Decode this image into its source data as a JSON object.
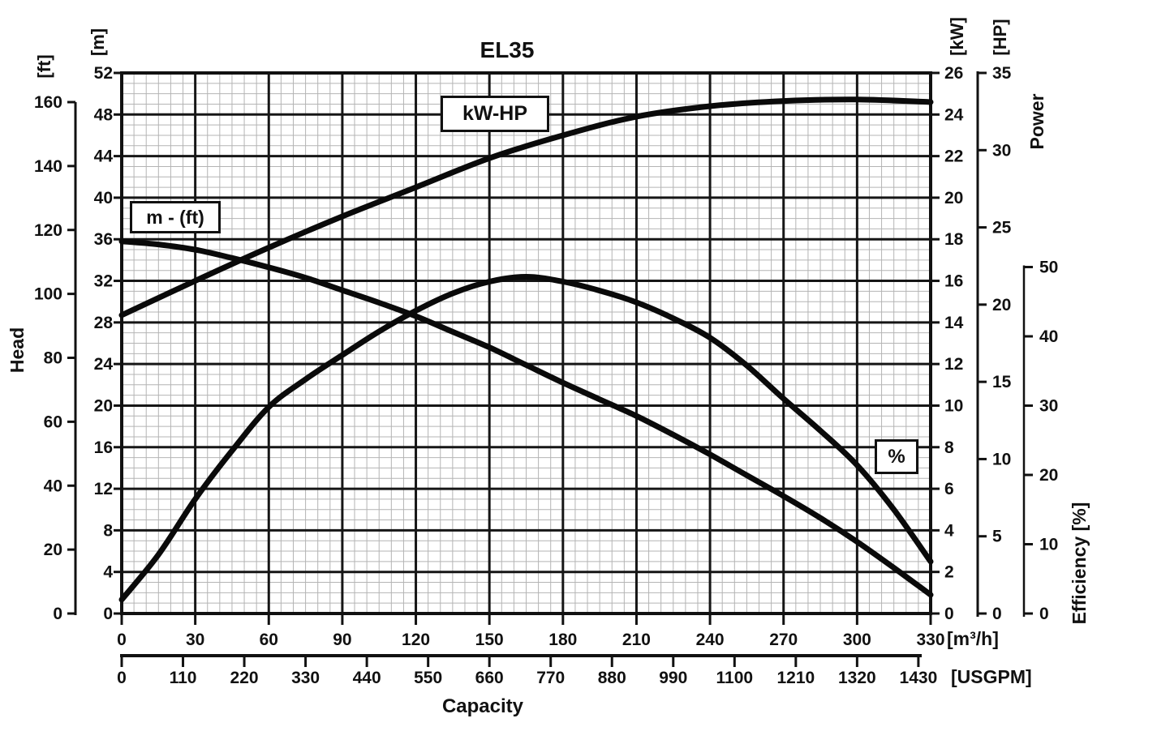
{
  "title": "EL35",
  "labels": {
    "head": "Head",
    "power": "Power",
    "efficiency": "Efficiency [%]",
    "unit_ft": "[ft]",
    "unit_m": "[m]",
    "unit_kw": "[kW]",
    "unit_hp": "[HP]"
  },
  "curve_labels": {
    "power": "kW-HP",
    "head": "m - (ft)",
    "efficiency": "%"
  },
  "colors": {
    "ink": "#111111",
    "curve": "#0a0a0a",
    "grid_minor": "#b4b4b4",
    "grid_major": "#161616",
    "background": "#ffffff"
  },
  "chart_data": {
    "type": "line",
    "title": "EL35",
    "grid": "fine mesh, minor x step 5 m3/h, minor y step 1 m, major x step 30 m3/h, major y step 4 m",
    "legend_position": "labeled boxes on curves",
    "x_axis": {
      "label": "Capacity",
      "units": [
        {
          "name": "m3h",
          "label": "[m³/h]",
          "range": [
            0,
            330
          ],
          "ticks": [
            0,
            30,
            60,
            90,
            120,
            150,
            180,
            210,
            240,
            270,
            300,
            330
          ]
        },
        {
          "name": "usgpm",
          "label": "[USGPM]",
          "range": [
            0,
            1452
          ],
          "ticks": [
            0,
            110,
            220,
            330,
            440,
            550,
            660,
            770,
            880,
            990,
            1100,
            1210,
            1320,
            1430
          ]
        }
      ]
    },
    "y_axes": [
      {
        "name": "m",
        "unit": "[m]",
        "quantity": "Head",
        "range": [
          0,
          52
        ],
        "ticks": [
          0,
          4,
          8,
          12,
          16,
          20,
          24,
          28,
          32,
          36,
          40,
          44,
          48,
          52
        ]
      },
      {
        "name": "ft",
        "unit": "[ft]",
        "quantity": "Head",
        "range": [
          0,
          160
        ],
        "ticks": [
          0,
          20,
          40,
          60,
          80,
          100,
          120,
          140,
          160
        ]
      },
      {
        "name": "kw",
        "unit": "[kW]",
        "quantity": "Power",
        "range": [
          0,
          26
        ],
        "ticks": [
          0,
          2,
          4,
          6,
          8,
          10,
          12,
          14,
          16,
          18,
          20,
          22,
          24,
          26
        ]
      },
      {
        "name": "hp",
        "unit": "[HP]",
        "quantity": "Power",
        "range": [
          0,
          35
        ],
        "ticks": [
          0,
          5,
          10,
          15,
          20,
          25,
          30,
          35
        ]
      },
      {
        "name": "eff",
        "unit": "[%]",
        "quantity": "Efficiency",
        "range": [
          0,
          50
        ],
        "ticks": [
          0,
          10,
          20,
          30,
          40,
          50
        ]
      }
    ],
    "series": [
      {
        "name": "head",
        "label": "m - (ft)",
        "axis": "m",
        "x_unit": "m3h",
        "points": [
          [
            0,
            35.8
          ],
          [
            15,
            35.5
          ],
          [
            30,
            35.0
          ],
          [
            45,
            34.2
          ],
          [
            60,
            33.3
          ],
          [
            75,
            32.3
          ],
          [
            90,
            31.1
          ],
          [
            105,
            29.9
          ],
          [
            120,
            28.6
          ],
          [
            135,
            27.1
          ],
          [
            150,
            25.6
          ],
          [
            165,
            23.9
          ],
          [
            180,
            22.2
          ],
          [
            195,
            20.6
          ],
          [
            210,
            19.0
          ],
          [
            225,
            17.2
          ],
          [
            240,
            15.3
          ],
          [
            255,
            13.3
          ],
          [
            270,
            11.3
          ],
          [
            285,
            9.2
          ],
          [
            300,
            6.9
          ],
          [
            315,
            4.4
          ],
          [
            330,
            1.8
          ]
        ]
      },
      {
        "name": "power",
        "label": "kW-HP",
        "axis": "kw",
        "x_unit": "m3h",
        "points": [
          [
            0,
            14.35
          ],
          [
            30,
            16.0
          ],
          [
            60,
            17.6
          ],
          [
            90,
            19.1
          ],
          [
            120,
            20.5
          ],
          [
            150,
            21.9
          ],
          [
            180,
            23.0
          ],
          [
            210,
            23.9
          ],
          [
            240,
            24.4
          ],
          [
            270,
            24.65
          ],
          [
            300,
            24.72
          ],
          [
            330,
            24.6
          ]
        ]
      },
      {
        "name": "efficiency",
        "label": "%",
        "axis": "eff",
        "x_unit": "m3h",
        "points": [
          [
            0,
            2
          ],
          [
            15,
            8.5
          ],
          [
            30,
            16.5
          ],
          [
            45,
            23.5
          ],
          [
            60,
            29.8
          ],
          [
            75,
            33.8
          ],
          [
            90,
            37.3
          ],
          [
            105,
            40.7
          ],
          [
            120,
            43.7
          ],
          [
            135,
            46.2
          ],
          [
            150,
            47.9
          ],
          [
            165,
            48.6
          ],
          [
            180,
            47.9
          ],
          [
            195,
            46.6
          ],
          [
            210,
            44.9
          ],
          [
            225,
            42.6
          ],
          [
            240,
            39.8
          ],
          [
            255,
            35.8
          ],
          [
            270,
            31.0
          ],
          [
            285,
            26.4
          ],
          [
            300,
            21.4
          ],
          [
            315,
            15.0
          ],
          [
            330,
            7.5
          ]
        ]
      }
    ]
  }
}
